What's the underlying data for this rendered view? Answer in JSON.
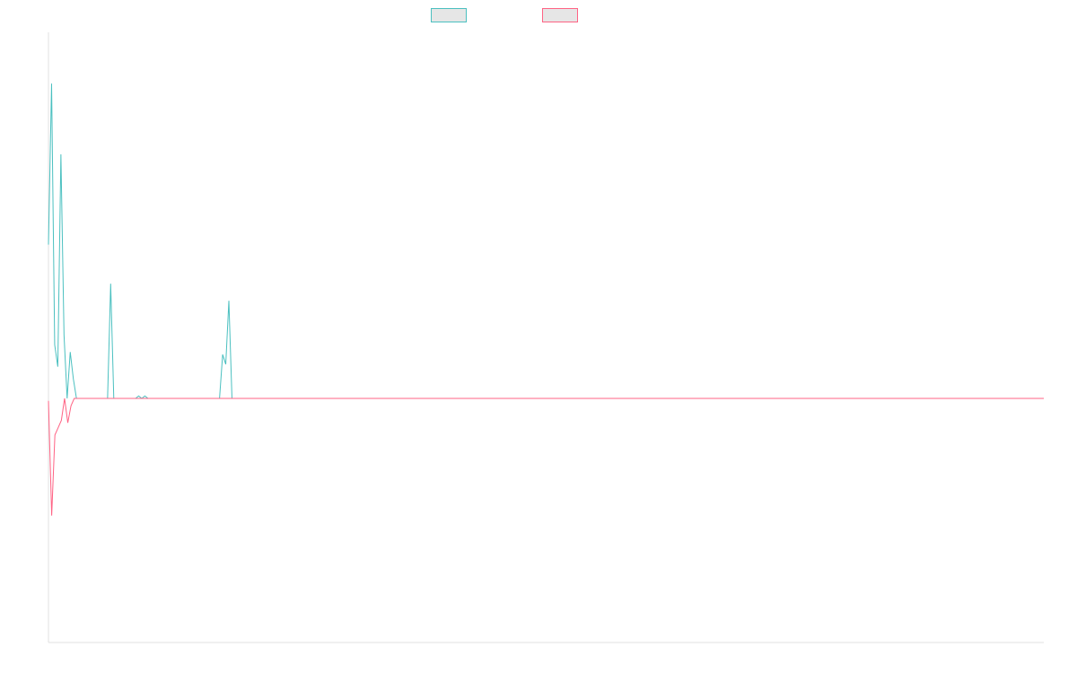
{
  "chart_data": {
    "type": "line",
    "title": "",
    "xlabel": "",
    "ylabel": "",
    "grid": false,
    "legend_position": "top-center",
    "ylim": [
      -100,
      150
    ],
    "series": [
      {
        "color": "#4bc0c0",
        "values": [
          63,
          129,
          22,
          13,
          100,
          26,
          0,
          19,
          8,
          0,
          0,
          0,
          0,
          0,
          0,
          0,
          0,
          0,
          0,
          0,
          47,
          0,
          0,
          0,
          0,
          0,
          0,
          0,
          0,
          1,
          0,
          1,
          0,
          0,
          0,
          0,
          0,
          0,
          0,
          0,
          0,
          0,
          0,
          0,
          0,
          0,
          0,
          0,
          0,
          0,
          0,
          0,
          0,
          0,
          0,
          0,
          18,
          14,
          40,
          0,
          0,
          0,
          0,
          0,
          0,
          0,
          0,
          0,
          0,
          0,
          0,
          0,
          0,
          0,
          0,
          0,
          0,
          0,
          0,
          0,
          0,
          0,
          0,
          0,
          0,
          0,
          0,
          0,
          0,
          0,
          0,
          0,
          0,
          0,
          0,
          0,
          0,
          0,
          0,
          0,
          0,
          0,
          0,
          0,
          0,
          0,
          0,
          0,
          0,
          0,
          0,
          0,
          0,
          0,
          0,
          0,
          0,
          0,
          0,
          0,
          0,
          0,
          0,
          0,
          0,
          0,
          0,
          0,
          0,
          0,
          0,
          0,
          0,
          0,
          0,
          0,
          0,
          0,
          0,
          0,
          0,
          0,
          0,
          0,
          0,
          0,
          0,
          0,
          0,
          0,
          0,
          0,
          0,
          0,
          0,
          0,
          0,
          0,
          0,
          0,
          0,
          0,
          0,
          0,
          0,
          0,
          0,
          0,
          0,
          0,
          0,
          0,
          0,
          0,
          0,
          0,
          0,
          0,
          0,
          0,
          0,
          0,
          0,
          0,
          0,
          0,
          0,
          0,
          0,
          0,
          0,
          0,
          0,
          0,
          0,
          0,
          0,
          0,
          0,
          0,
          0,
          0,
          0,
          0,
          0,
          0,
          0,
          0,
          0,
          0,
          0,
          0,
          0,
          0,
          0,
          0,
          0,
          0,
          0,
          0,
          0,
          0,
          0,
          0,
          0,
          0,
          0,
          0,
          0,
          0,
          0,
          0,
          0,
          0,
          0,
          0,
          0,
          0,
          0,
          0,
          0,
          0,
          0,
          0,
          0,
          0,
          0,
          0,
          0,
          0,
          0,
          0,
          0,
          0,
          0,
          0,
          0,
          0,
          0,
          0,
          0,
          0,
          0,
          0,
          0,
          0,
          0,
          0,
          0,
          0,
          0,
          0,
          0,
          0,
          0,
          0,
          0,
          0,
          0,
          0,
          0,
          0,
          0,
          0,
          0,
          0,
          0,
          0,
          0,
          0,
          0,
          0,
          0,
          0,
          0,
          0,
          0,
          0,
          0,
          0,
          0,
          0,
          0,
          0,
          0,
          0,
          0,
          0,
          0,
          0,
          0,
          0,
          0,
          0,
          0,
          0,
          0,
          0,
          0,
          0,
          0
        ]
      },
      {
        "color": "#ff6384",
        "values": [
          -1,
          -48,
          -15,
          -12,
          -9,
          0,
          -10,
          -3,
          0,
          0,
          0,
          0,
          0,
          0,
          0,
          0,
          0,
          0,
          0,
          0,
          0,
          0,
          0,
          0,
          0,
          0,
          0,
          0,
          0,
          0,
          0,
          0,
          0,
          0,
          0,
          0,
          0,
          0,
          0,
          0,
          0,
          0,
          0,
          0,
          0,
          0,
          0,
          0,
          0,
          0,
          0,
          0,
          0,
          0,
          0,
          0,
          0,
          0,
          0,
          0,
          0,
          0,
          0,
          0,
          0,
          0,
          0,
          0,
          0,
          0,
          0,
          0,
          0,
          0,
          0,
          0,
          0,
          0,
          0,
          0,
          0,
          0,
          0,
          0,
          0,
          0,
          0,
          0,
          0,
          0,
          0,
          0,
          0,
          0,
          0,
          0,
          0,
          0,
          0,
          0,
          0,
          0,
          0,
          0,
          0,
          0,
          0,
          0,
          0,
          0,
          0,
          0,
          0,
          0,
          0,
          0,
          0,
          0,
          0,
          0,
          0,
          0,
          0,
          0,
          0,
          0,
          0,
          0,
          0,
          0,
          0,
          0,
          0,
          0,
          0,
          0,
          0,
          0,
          0,
          0,
          0,
          0,
          0,
          0,
          0,
          0,
          0,
          0,
          0,
          0,
          0,
          0,
          0,
          0,
          0,
          0,
          0,
          0,
          0,
          0,
          0,
          0,
          0,
          0,
          0,
          0,
          0,
          0,
          0,
          0,
          0,
          0,
          0,
          0,
          0,
          0,
          0,
          0,
          0,
          0,
          0,
          0,
          0,
          0,
          0,
          0,
          0,
          0,
          0,
          0,
          0,
          0,
          0,
          0,
          0,
          0,
          0,
          0,
          0,
          0,
          0,
          0,
          0,
          0,
          0,
          0,
          0,
          0,
          0,
          0,
          0,
          0,
          0,
          0,
          0,
          0,
          0,
          0,
          0,
          0,
          0,
          0,
          0,
          0,
          0,
          0,
          0,
          0,
          0,
          0,
          0,
          0,
          0,
          0,
          0,
          0,
          0,
          0,
          0,
          0,
          0,
          0,
          0,
          0,
          0,
          0,
          0,
          0,
          0,
          0,
          0,
          0,
          0,
          0,
          0,
          0,
          0,
          0,
          0,
          0,
          0,
          0,
          0,
          0,
          0,
          0,
          0,
          0,
          0,
          0,
          0,
          0,
          0,
          0,
          0,
          0,
          0,
          0,
          0,
          0,
          0,
          0,
          0,
          0,
          0,
          0,
          0,
          0,
          0,
          0,
          0,
          0,
          0,
          0,
          0,
          0,
          0,
          0,
          0,
          0,
          0,
          0,
          0,
          0,
          0,
          0,
          0,
          0,
          0,
          0
        ]
      }
    ]
  }
}
